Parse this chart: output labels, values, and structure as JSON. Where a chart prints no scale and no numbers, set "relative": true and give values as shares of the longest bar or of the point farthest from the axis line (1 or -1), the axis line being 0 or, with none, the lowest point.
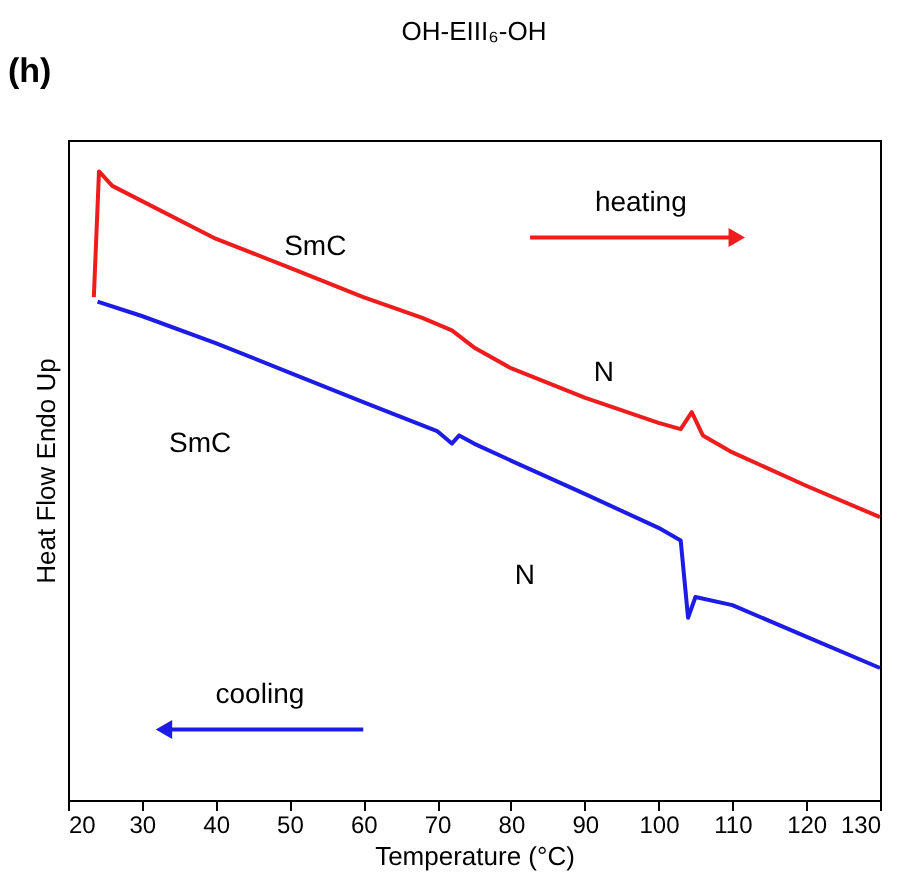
{
  "chart_data": {
    "type": "line",
    "title": "OH-EIII₆-OH",
    "xlabel": "Temperature (°C)",
    "ylabel": "Heat Flow Endo Up",
    "relative": true,
    "xlim": [
      20,
      130
    ],
    "xticks": [
      20,
      30,
      40,
      50,
      60,
      70,
      80,
      90,
      100,
      110,
      120,
      130
    ],
    "grid": false,
    "tick_labels": "x",
    "series": [
      {
        "color": "#ee1c1c",
        "x": [
          23.5,
          24.2,
          26,
          40,
          50,
          60,
          68,
          72,
          75,
          80,
          90,
          100,
          103,
          104.5,
          106,
          110,
          120,
          130
        ],
        "values": [
          0.8,
          1.0,
          0.977,
          0.893,
          0.847,
          0.8,
          0.767,
          0.747,
          0.72,
          0.687,
          0.64,
          0.6,
          0.59,
          0.617,
          0.58,
          0.553,
          0.5,
          0.45
        ]
      },
      {
        "color": "#1c1ce6",
        "x": [
          24,
          30,
          40,
          50,
          60,
          70,
          72,
          73,
          75,
          80,
          90,
          100,
          103,
          104,
          105,
          110,
          120,
          130
        ],
        "values": [
          0.793,
          0.77,
          0.727,
          0.68,
          0.633,
          0.587,
          0.567,
          0.58,
          0.567,
          0.54,
          0.487,
          0.433,
          0.413,
          0.29,
          0.323,
          0.31,
          0.26,
          0.21
        ]
      }
    ],
    "annotations": [
      "(h)",
      "SmC",
      "heating",
      "N",
      "SmC",
      "N",
      "cooling"
    ]
  }
}
